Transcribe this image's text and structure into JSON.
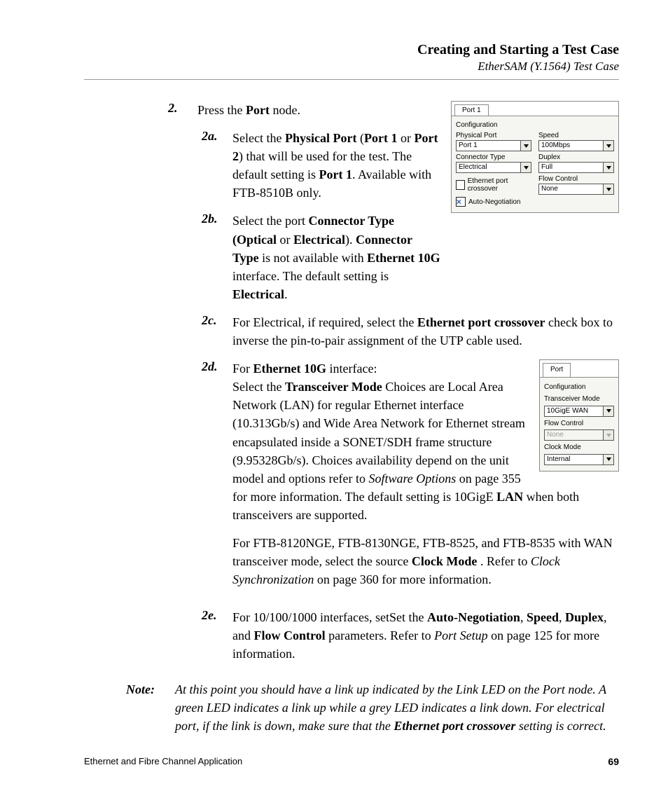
{
  "header": {
    "title": "Creating and Starting a Test Case",
    "subtitle": "EtherSAM (Y.1564) Test Case"
  },
  "step2": {
    "num": "2.",
    "html": "Press the <b>Port</b> node."
  },
  "sub2a": {
    "num": "2a.",
    "html": "Select the <b>Physical Port</b> (<b>Port 1</b> or <b>Port 2</b>) that will be used for the test. The default setting is <b>Port 1</b>. Available with FTB-8510B only."
  },
  "sub2b": {
    "num": "2b.",
    "html": "Select the port <b>Connector Type (Optical</b> or <b>Electrical</b>). <b>Connector Type</b> is not available with <b>Ethernet 10G</b> interface. The default setting is <b>Electrical</b>."
  },
  "sub2c": {
    "num": "2c.",
    "html": "For Electrical, if required, select the <b>Ethernet port crossover</b> check box to inverse the pin-to-pair assignment of the UTP cable used."
  },
  "sub2d": {
    "num": "2d.",
    "p1_html": "For <b>Ethernet 10G</b> interface:<br>Select the <b>Transceiver Mode</b> Choices are Local Area Network (LAN) for regular Ethernet interface (10.313Gb/s) and Wide Area Network for Ethernet stream encapsulated inside a SONET/SDH frame structure (9.95328Gb/s). Choices availability depend on the unit model and options refer to <i>Software Options</i> on page 355 for more information. The default setting is 10GigE <b>LAN</b> when both transceivers are supported.",
    "p2_html": "For FTB-8120NGE, FTB-8130NGE, FTB-8525, and FTB-8535 with WAN transceiver mode, select the source <b>Clock Mode</b> . Refer to <i>Clock Synchronization</i> on page 360 for more information."
  },
  "sub2e": {
    "num": "2e.",
    "html": "For 10/100/1000 interfaces, setSet the <b>Auto-Negotiation</b>, <b>Speed</b>, <b>Duplex</b>, and <b>Flow Control</b> parameters. Refer to <i>Port Setup</i> on page 125 for more information."
  },
  "note": {
    "label": "Note:",
    "html": "At this point you should have a link up indicated by the Link LED on the Port node. A green LED indicates a link up while a grey LED indicates a link down. For electrical port, if the link is down, make sure that the <b>Ethernet port crossover</b> setting is correct."
  },
  "figure1": {
    "tab": "Port 1",
    "section": "Configuration",
    "physical_port_label": "Physical Port",
    "physical_port_value": "Port 1",
    "speed_label": "Speed",
    "speed_value": "100Mbps",
    "connector_label": "Connector Type",
    "connector_value": "Electrical",
    "duplex_label": "Duplex",
    "duplex_value": "Full",
    "crossover_label": "Ethernet port crossover",
    "flow_label": "Flow Control",
    "flow_value": "None",
    "autoneg_label": "Auto-Negotiation"
  },
  "figure2": {
    "tab": "Port",
    "section": "Configuration",
    "transceiver_label": "Transceiver Mode",
    "transceiver_value": "10GigE WAN",
    "flow_label": "Flow Control",
    "flow_value": "None",
    "clock_label": "Clock Mode",
    "clock_value": "Internal"
  },
  "footer": {
    "left": "Ethernet and Fibre Channel Application",
    "page": "69"
  }
}
